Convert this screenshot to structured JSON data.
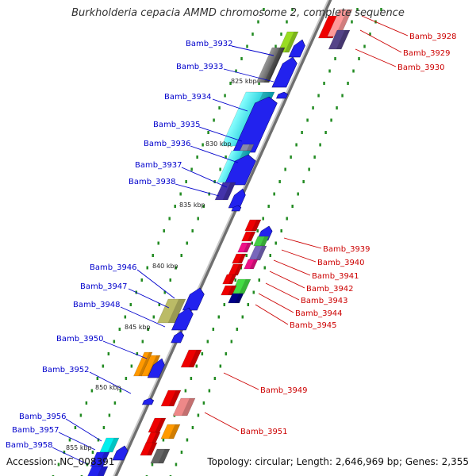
{
  "title": "Burkholderia cepacia AMMD chromosome 2, complete sequence",
  "accession_label": "Accession: NC_008391",
  "summary_label": "Topology: circular; Length: 2,646,969 bp; Genes: 2,355",
  "colors": {
    "forward_label": "#0000cc",
    "reverse_label": "#cc0000",
    "backbone": "#8c8c8c",
    "tick": "#228b22"
  },
  "kbp_markers": [
    "825 kbp",
    "830 kbp",
    "835 kbp",
    "840 kbp",
    "845 kbp",
    "850 kbp",
    "855 kbp"
  ],
  "forward_genes": [
    {
      "label": "Bamb_3932",
      "color": "#99dd22",
      "icon": "right-arrow"
    },
    {
      "label": "Bamb_3933",
      "color": "#666666",
      "icon": "right-arrow"
    },
    {
      "label": "Bamb_3934",
      "color": "#00dddd",
      "icon": "right-arrow"
    },
    {
      "label": "Bamb_3935",
      "color": "#00dddd",
      "icon": "right-arrow"
    },
    {
      "label": "Bamb_3936",
      "color": "#8888aa",
      "icon": "right-arrow"
    },
    {
      "label": "Bamb_3937",
      "color": "#00dddd",
      "icon": "right-arrow"
    },
    {
      "label": "Bamb_3938",
      "color": "#4433aa",
      "icon": "right-arrow"
    },
    {
      "label": "Bamb_3946",
      "color": "#bbbb66",
      "icon": "right-arrow"
    },
    {
      "label": "Bamb_3947",
      "color": "#bbbb66",
      "icon": "right-arrow"
    },
    {
      "label": "Bamb_3948",
      "color": "#2222ee",
      "icon": "right-arrow"
    },
    {
      "label": "Bamb_3950",
      "color": "#ff9900",
      "icon": "right-arrow"
    },
    {
      "label": "Bamb_3952",
      "color": "#2222ee",
      "icon": "right-arrow"
    },
    {
      "label": "Bamb_3956",
      "color": "#00eeee",
      "icon": "right-arrow"
    },
    {
      "label": "Bamb_3957",
      "color": "#2222ee",
      "icon": "right-arrow"
    },
    {
      "label": "Bamb_3958",
      "color": "#2222ee",
      "icon": "right-arrow"
    }
  ],
  "reverse_genes": [
    {
      "label": "Bamb_3928",
      "color": "#ee0000",
      "icon": "left-arrow"
    },
    {
      "label": "Bamb_3929",
      "color": "#ff9999",
      "icon": "left-arrow"
    },
    {
      "label": "Bamb_3930",
      "color": "#554488",
      "icon": "left-arrow"
    },
    {
      "label": "Bamb_3939",
      "color": "#ee0000",
      "icon": "left-arrow"
    },
    {
      "label": "Bamb_3940",
      "color": "#44cc44",
      "icon": "left-arrow"
    },
    {
      "label": "Bamb_3941",
      "color": "#7766bb",
      "icon": "left-arrow"
    },
    {
      "label": "Bamb_3942",
      "color": "#ee1188",
      "icon": "left-arrow"
    },
    {
      "label": "Bamb_3943",
      "color": "#ee0000",
      "icon": "left-arrow"
    },
    {
      "label": "Bamb_3944",
      "color": "#44dd44",
      "icon": "left-arrow"
    },
    {
      "label": "Bamb_3945",
      "color": "#000088",
      "icon": "left-arrow"
    },
    {
      "label": "Bamb_3949",
      "color": "#ee0000",
      "icon": "left-arrow"
    },
    {
      "label": "Bamb_3951",
      "color": "#ee8888",
      "icon": "left-arrow"
    }
  ]
}
